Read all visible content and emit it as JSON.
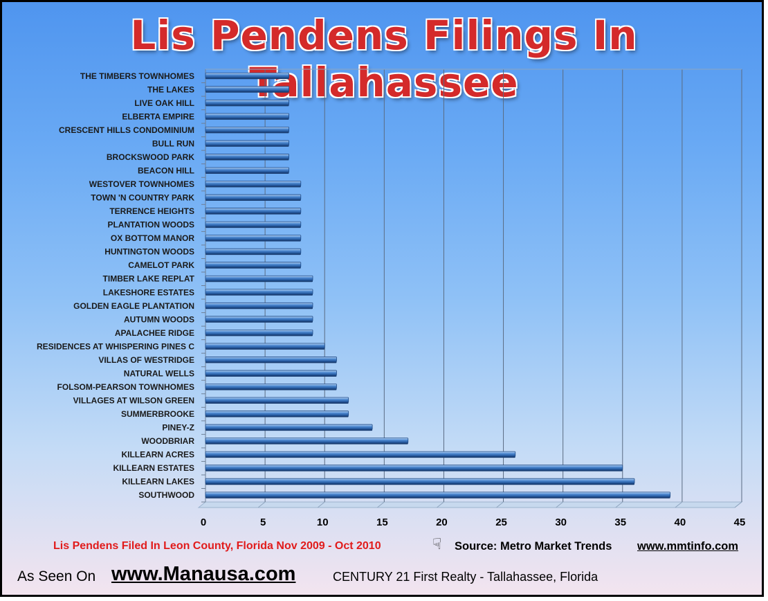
{
  "title": "Lis Pendens Filings In Tallahassee",
  "footer": {
    "footnote": "Lis Pendens Filed In Leon County, Florida Nov 2009 - Oct 2010",
    "source_label": "Source: Metro Market Trends",
    "source_url": "www.mmtinfo.com",
    "as_seen_on": "As Seen On",
    "site_url": "www.Manausa.com",
    "realty": "CENTURY 21 First Realty - Tallahassee, Florida",
    "hand_icon": "pointing-hand-icon"
  },
  "colors": {
    "bar": "#4a86cf",
    "title": "#d42a2a",
    "footnote": "#e11b1b"
  },
  "chart_data": {
    "type": "bar",
    "orientation": "horizontal",
    "title": "Lis Pendens Filings In Tallahassee",
    "xlabel": "",
    "ylabel": "",
    "xlim": [
      0,
      45
    ],
    "xticks": [
      0,
      5,
      10,
      15,
      20,
      25,
      30,
      35,
      40,
      45
    ],
    "grid": true,
    "categories": [
      "THE TIMBERS TOWNHOMES",
      "THE LAKES",
      "LIVE OAK HILL",
      "ELBERTA EMPIRE",
      "CRESCENT HILLS CONDOMINIUM",
      "BULL RUN",
      "BROCKSWOOD PARK",
      "BEACON HILL",
      "WESTOVER TOWNHOMES",
      "TOWN 'N COUNTRY PARK",
      "TERRENCE HEIGHTS",
      "PLANTATION WOODS",
      "OX BOTTOM MANOR",
      "HUNTINGTON WOODS",
      "CAMELOT PARK",
      "TIMBER LAKE REPLAT",
      "LAKESHORE ESTATES",
      "GOLDEN EAGLE PLANTATION",
      "AUTUMN WOODS",
      "APALACHEE RIDGE",
      "RESIDENCES AT WHISPERING PINES C",
      "VILLAS OF WESTRIDGE",
      "NATURAL WELLS",
      "FOLSOM-PEARSON TOWNHOMES",
      "VILLAGES AT WILSON GREEN",
      "SUMMERBROOKE",
      "PINEY-Z",
      "WOODBRIAR",
      "KILLEARN ACRES",
      "KILLEARN ESTATES",
      "KILLEARN LAKES",
      "SOUTHWOOD"
    ],
    "values": [
      7,
      7,
      7,
      7,
      7,
      7,
      7,
      7,
      8,
      8,
      8,
      8,
      8,
      8,
      8,
      9,
      9,
      9,
      9,
      9,
      10,
      11,
      11,
      11,
      12,
      12,
      14,
      17,
      26,
      35,
      36,
      39
    ]
  }
}
